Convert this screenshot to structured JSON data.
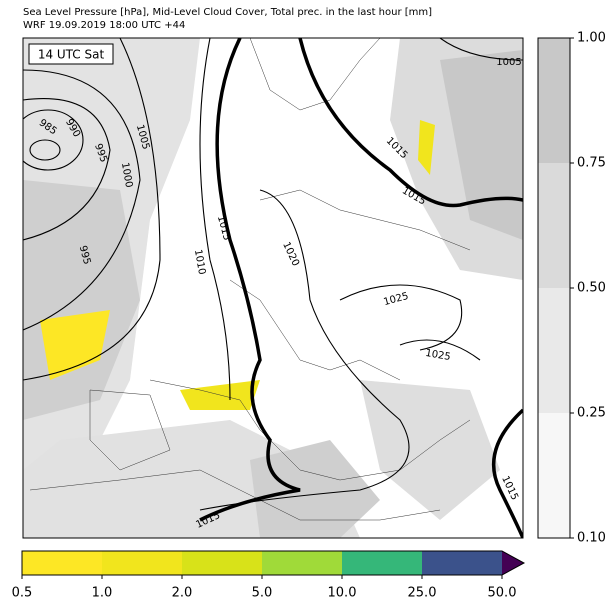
{
  "header": {
    "title": "Sea Level Pressure [hPa], Mid-Level Cloud Cover, Total prec. in the last hour [mm]",
    "subtitle": "WRF 19.09.2019 18:00 UTC +44"
  },
  "map": {
    "time_label": "14 UTC Sat",
    "isobar_labels": [
      "985",
      "990",
      "995",
      "1000",
      "1005",
      "1005",
      "995",
      "1010",
      "1015",
      "1020",
      "1015",
      "1015",
      "1025",
      "1025",
      "1015",
      "1015"
    ]
  },
  "cloud_colorbar": {
    "ticks": [
      "0.10",
      "0.25",
      "0.50",
      "0.75",
      "1.00"
    ],
    "colors": [
      "#f7f7f7",
      "#e9e9e9",
      "#dadada",
      "#c8c8c8"
    ]
  },
  "precip_colorbar": {
    "ticks": [
      "0.5",
      "1.0",
      "2.0",
      "5.0",
      "10.0",
      "25.0",
      "50.0"
    ],
    "colors": [
      "#fde725",
      "#f1e51d",
      "#d8e219",
      "#a0da39",
      "#35b779",
      "#3b528b",
      "#440154"
    ]
  }
}
